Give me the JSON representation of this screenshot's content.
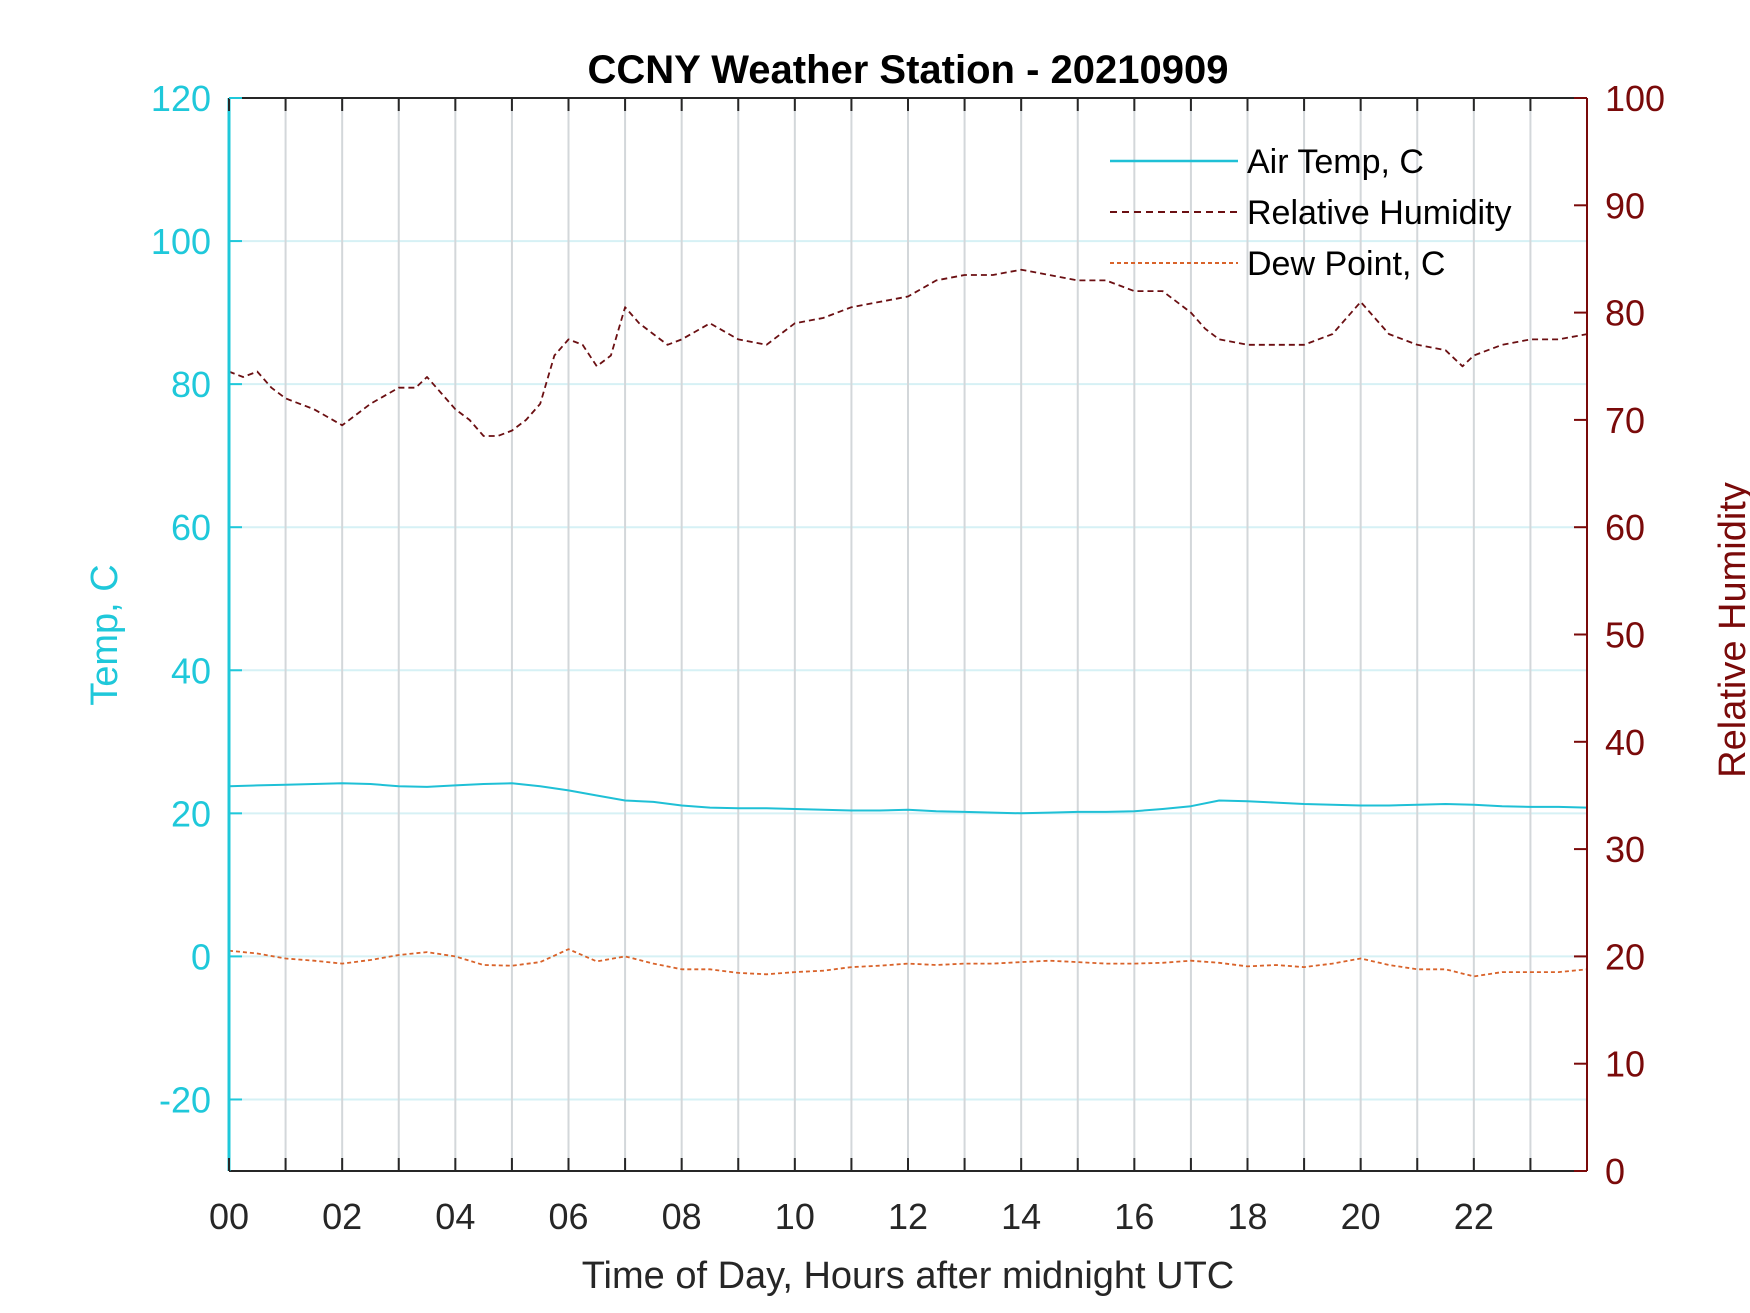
{
  "chart_data": {
    "type": "line",
    "title": "CCNY Weather Station - 20210909",
    "xlabel": "Time of Day, Hours after midnight UTC",
    "ylabel_left": "Temp, C",
    "ylabel_right": "Relative Humidity",
    "xlim": [
      0,
      24
    ],
    "ylim_left": [
      -30,
      120
    ],
    "ylim_right": [
      0,
      100
    ],
    "x_ticks": [
      0,
      2,
      4,
      6,
      8,
      10,
      12,
      14,
      16,
      18,
      20,
      22
    ],
    "x_tick_labels": [
      "00",
      "02",
      "04",
      "06",
      "08",
      "10",
      "12",
      "14",
      "16",
      "18",
      "20",
      "22"
    ],
    "y_left_ticks": [
      -20,
      0,
      20,
      40,
      60,
      80,
      100,
      120
    ],
    "y_left_tick_labels": [
      "-20",
      "0",
      "20",
      "40",
      "60",
      "80",
      "100",
      "120"
    ],
    "y_right_ticks": [
      0,
      10,
      20,
      30,
      40,
      50,
      60,
      70,
      80,
      90,
      100
    ],
    "y_right_tick_labels": [
      "0",
      "10",
      "20",
      "30",
      "40",
      "50",
      "60",
      "70",
      "80",
      "90",
      "100"
    ],
    "grid": true,
    "legend_position": "top-right",
    "colors": {
      "left_axis": "#1fc8da",
      "right_axis": "#7a0a0a",
      "air_temp": "#1fc0d6",
      "humidity": "#6b0f12",
      "dew_point": "#d9632a",
      "grid_horizontal": "#d6f1f5",
      "grid_vertical": "#d3d7da"
    },
    "series": [
      {
        "name": "Air Temp, C",
        "axis": "left",
        "style": "solid",
        "x": [
          0,
          0.5,
          1,
          1.5,
          2,
          2.5,
          3,
          3.5,
          4,
          4.5,
          5,
          5.5,
          6,
          6.5,
          7,
          7.5,
          8,
          8.5,
          9,
          9.5,
          10,
          10.5,
          11,
          11.5,
          12,
          12.5,
          13,
          13.5,
          14,
          14.5,
          15,
          15.5,
          16,
          16.5,
          17,
          17.5,
          18,
          18.5,
          19,
          19.5,
          20,
          20.5,
          21,
          21.5,
          22,
          22.5,
          23,
          23.5,
          24
        ],
        "values": [
          23.8,
          23.9,
          24.0,
          24.1,
          24.2,
          24.1,
          23.8,
          23.7,
          23.9,
          24.1,
          24.2,
          23.8,
          23.2,
          22.5,
          21.8,
          21.6,
          21.1,
          20.8,
          20.7,
          20.7,
          20.6,
          20.5,
          20.4,
          20.4,
          20.5,
          20.3,
          20.2,
          20.1,
          20.0,
          20.1,
          20.2,
          20.2,
          20.3,
          20.6,
          21.0,
          21.8,
          21.7,
          21.5,
          21.3,
          21.2,
          21.1,
          21.1,
          21.2,
          21.3,
          21.2,
          21.0,
          20.9,
          20.9,
          20.8
        ]
      },
      {
        "name": "Relative Humidity",
        "axis": "right",
        "style": "dashed",
        "x": [
          0,
          0.25,
          0.5,
          0.75,
          1,
          1.5,
          2,
          2.5,
          3,
          3.3,
          3.5,
          3.75,
          4,
          4.25,
          4.5,
          4.75,
          5,
          5.25,
          5.5,
          5.75,
          6,
          6.25,
          6.5,
          6.75,
          7,
          7.25,
          7.5,
          7.75,
          8,
          8.5,
          9,
          9.5,
          10,
          10.5,
          11,
          11.5,
          12,
          12.5,
          13,
          13.5,
          14,
          14.5,
          15,
          15.5,
          16,
          16.5,
          17,
          17.25,
          17.5,
          18,
          18.5,
          19,
          19.5,
          20,
          20.5,
          21,
          21.5,
          21.8,
          22,
          22.5,
          23,
          23.5,
          24
        ],
        "values": [
          74.5,
          74.0,
          74.5,
          73.0,
          72.0,
          71.0,
          69.5,
          71.5,
          73.0,
          73.0,
          74.0,
          72.5,
          71.0,
          70.0,
          68.5,
          68.5,
          69.0,
          70.0,
          71.5,
          76.0,
          77.5,
          77.0,
          75.0,
          76.0,
          80.5,
          79.0,
          78.0,
          77.0,
          77.5,
          79.0,
          77.5,
          77.0,
          79.0,
          79.5,
          80.5,
          81.0,
          81.5,
          83.0,
          83.5,
          83.5,
          84.0,
          83.5,
          83.0,
          83.0,
          82.0,
          82.0,
          80.0,
          78.5,
          77.5,
          77.0,
          77.0,
          77.0,
          78.0,
          81.0,
          78.0,
          77.0,
          76.5,
          75.0,
          76.0,
          77.0,
          77.5,
          77.5,
          78.0
        ]
      },
      {
        "name": "Dew Point, C",
        "axis": "left",
        "style": "dashed",
        "x": [
          0,
          0.5,
          1,
          1.5,
          2,
          2.5,
          3,
          3.5,
          4,
          4.5,
          5,
          5.5,
          6,
          6.5,
          7,
          7.5,
          8,
          8.5,
          9,
          9.5,
          10,
          10.5,
          11,
          11.5,
          12,
          12.5,
          13,
          13.5,
          14,
          14.5,
          15,
          15.5,
          16,
          16.5,
          17,
          17.5,
          18,
          18.5,
          19,
          19.5,
          20,
          20.5,
          21,
          21.5,
          22,
          22.5,
          23,
          23.5,
          24
        ],
        "values": [
          0.8,
          0.4,
          -0.3,
          -0.6,
          -1.0,
          -0.5,
          0.2,
          0.6,
          0.0,
          -1.2,
          -1.3,
          -0.8,
          1.0,
          -0.7,
          0.0,
          -1.0,
          -1.8,
          -1.8,
          -2.3,
          -2.5,
          -2.2,
          -2.0,
          -1.5,
          -1.3,
          -1.0,
          -1.2,
          -1.0,
          -1.0,
          -0.8,
          -0.6,
          -0.8,
          -1.0,
          -1.0,
          -0.9,
          -0.6,
          -0.9,
          -1.4,
          -1.2,
          -1.5,
          -1.0,
          -0.3,
          -1.2,
          -1.8,
          -1.8,
          -2.8,
          -2.2,
          -2.2,
          -2.2,
          -1.8
        ]
      }
    ]
  }
}
